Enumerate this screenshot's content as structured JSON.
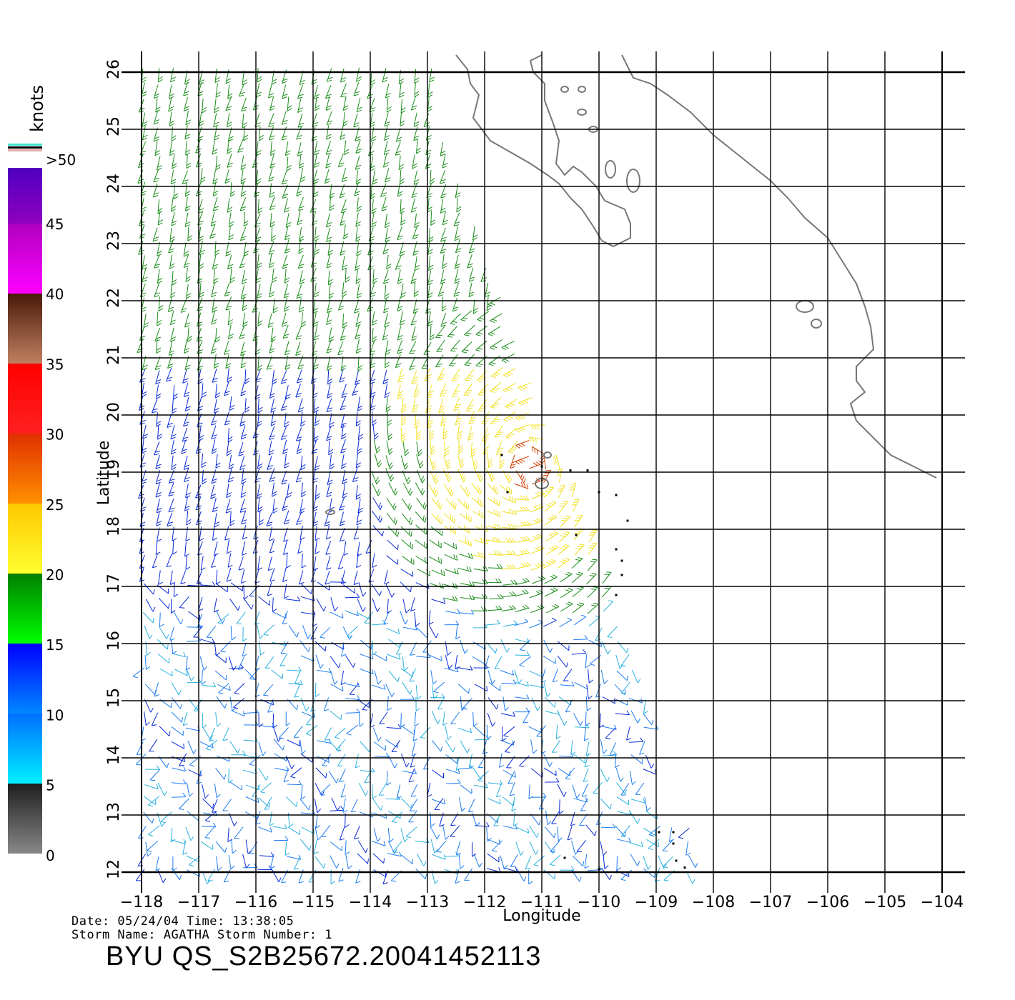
{
  "map": {
    "lon_ticks": [
      "−118",
      "−117",
      "−116",
      "−115",
      "−114",
      "−113",
      "−112",
      "−111",
      "−110",
      "−109",
      "−108",
      "−107",
      "−106",
      "−105",
      "−104"
    ],
    "lat_ticks": [
      "12",
      "13",
      "14",
      "15",
      "16",
      "17",
      "18",
      "19",
      "20",
      "21",
      "22",
      "23",
      "24",
      "25",
      "26"
    ],
    "xlabel": "Longitude",
    "ylabel": "Latitude",
    "lon_range": [
      -118,
      -104
    ],
    "lat_range": [
      12,
      26
    ],
    "storm_center": {
      "lon": -111.2,
      "lat": 19.1
    }
  },
  "colorbar": {
    "unit": "knots",
    "labels": [
      ">50",
      "45",
      "40",
      "35",
      "30",
      "25",
      "20",
      "15",
      "10",
      "5",
      "0"
    ],
    "stops": [
      {
        "from": 0,
        "to": 5,
        "top": "#1e1e1e",
        "bottom": "#888888"
      },
      {
        "from": 5,
        "to": 10,
        "top": "#0070ff",
        "bottom": "#00f0ff"
      },
      {
        "from": 10,
        "to": 15,
        "top": "#0000ff",
        "bottom": "#0088ff"
      },
      {
        "from": 15,
        "to": 20,
        "top": "#008000",
        "bottom": "#00ff00"
      },
      {
        "from": 20,
        "to": 25,
        "top": "#ffc800",
        "bottom": "#ffff30"
      },
      {
        "from": 25,
        "to": 30,
        "top": "#e03000",
        "bottom": "#ff9000"
      },
      {
        "from": 30,
        "to": 35,
        "top": "#ff0000",
        "bottom": "#ff2020"
      },
      {
        "from": 35,
        "to": 40,
        "top": "#4a1a0a",
        "bottom": "#c08060"
      },
      {
        "from": 40,
        "to": 45,
        "top": "#b000c0",
        "bottom": "#ff00ff"
      },
      {
        "from": 45,
        "to": 50,
        "top": "#5000c0",
        "bottom": "#9000c0"
      }
    ]
  },
  "info": {
    "date_line": "Date: 05/24/04   Time: 13:38:05",
    "storm_line": "Storm Name: AGATHA   Storm Number: 1",
    "title": "BYU QS_S2B25672.20041452113"
  }
}
